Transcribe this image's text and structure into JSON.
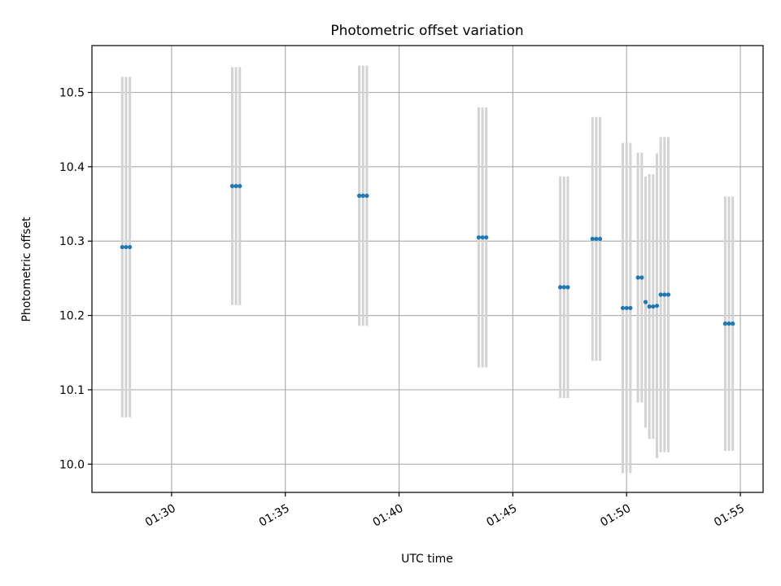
{
  "chart_data": {
    "type": "scatter",
    "title": "Photometric offset variation",
    "xlabel": "UTC time",
    "ylabel": "Photometric offset",
    "xlim": [
      "01:26:30",
      "01:56:00"
    ],
    "ylim": [
      9.962,
      10.563
    ],
    "x_ticks": [
      "01:30",
      "01:35",
      "01:40",
      "01:45",
      "01:50",
      "01:55"
    ],
    "y_ticks": [
      10.0,
      10.1,
      10.2,
      10.3,
      10.4,
      10.5
    ],
    "grid": true,
    "point_color": "#1f77b4",
    "errorbar_color": "#d3d3d3",
    "series": [
      {
        "points": [
          {
            "x": "01:27:50",
            "y": 10.292,
            "yerr": 0.229
          },
          {
            "x": "01:28:00",
            "y": 10.292,
            "yerr": 0.229
          },
          {
            "x": "01:28:10",
            "y": 10.292,
            "yerr": 0.229
          },
          {
            "x": "01:32:40",
            "y": 10.374,
            "yerr": 0.16
          },
          {
            "x": "01:32:50",
            "y": 10.374,
            "yerr": 0.16
          },
          {
            "x": "01:33:00",
            "y": 10.374,
            "yerr": 0.16
          },
          {
            "x": "01:38:15",
            "y": 10.361,
            "yerr": 0.175
          },
          {
            "x": "01:38:25",
            "y": 10.361,
            "yerr": 0.175
          },
          {
            "x": "01:38:35",
            "y": 10.361,
            "yerr": 0.175
          },
          {
            "x": "01:43:30",
            "y": 10.305,
            "yerr": 0.175
          },
          {
            "x": "01:43:40",
            "y": 10.305,
            "yerr": 0.175
          },
          {
            "x": "01:43:50",
            "y": 10.305,
            "yerr": 0.175
          },
          {
            "x": "01:47:05",
            "y": 10.238,
            "yerr": 0.149
          },
          {
            "x": "01:47:15",
            "y": 10.238,
            "yerr": 0.149
          },
          {
            "x": "01:47:25",
            "y": 10.238,
            "yerr": 0.149
          },
          {
            "x": "01:48:30",
            "y": 10.303,
            "yerr": 0.164
          },
          {
            "x": "01:48:40",
            "y": 10.303,
            "yerr": 0.164
          },
          {
            "x": "01:48:50",
            "y": 10.303,
            "yerr": 0.164
          },
          {
            "x": "01:49:50",
            "y": 10.21,
            "yerr": 0.222
          },
          {
            "x": "01:50:00",
            "y": 10.21,
            "yerr": 0.222
          },
          {
            "x": "01:50:10",
            "y": 10.21,
            "yerr": 0.222
          },
          {
            "x": "01:50:30",
            "y": 10.251,
            "yerr": 0.168
          },
          {
            "x": "01:50:40",
            "y": 10.251,
            "yerr": 0.168
          },
          {
            "x": "01:50:50",
            "y": 10.218,
            "yerr": 0.169
          },
          {
            "x": "01:51:00",
            "y": 10.212,
            "yerr": 0.178
          },
          {
            "x": "01:51:10",
            "y": 10.212,
            "yerr": 0.178
          },
          {
            "x": "01:51:20",
            "y": 10.213,
            "yerr": 0.205
          },
          {
            "x": "01:51:30",
            "y": 10.228,
            "yerr": 0.212
          },
          {
            "x": "01:51:40",
            "y": 10.228,
            "yerr": 0.212
          },
          {
            "x": "01:51:50",
            "y": 10.228,
            "yerr": 0.212
          },
          {
            "x": "01:54:20",
            "y": 10.189,
            "yerr": 0.171
          },
          {
            "x": "01:54:30",
            "y": 10.189,
            "yerr": 0.171
          },
          {
            "x": "01:54:40",
            "y": 10.189,
            "yerr": 0.171
          }
        ]
      }
    ]
  }
}
